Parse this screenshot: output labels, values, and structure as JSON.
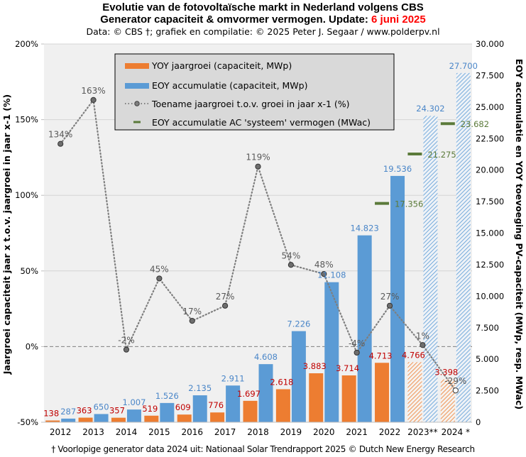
{
  "header": {
    "title_line1": "Evolutie van de fotovoltaïsche markt in Nederland volgens CBS",
    "title_line2_prefix": "Generator capaciteit & omvormer vermogen. Update: ",
    "title_line2_date": "6 juni 2025",
    "subtitle": "Data: © CBS †; grafiek en compilatie: © 2025 Peter J. Segaar / www.polderpv.nl"
  },
  "footer": "† Voorlopige generator data 2024 uit: Nationaal Solar Trendrapport 2025 © Dutch New Energy Research",
  "colors": {
    "yoy": "#ed7d31",
    "eoy": "#5b9bd5",
    "growth_line": "#7f7f7f",
    "ac": "#5b7a3a",
    "plot_bg": "#f0f0f0",
    "legend_bg": "#d9d9d9",
    "date_red": "#ff0000"
  },
  "chart_data": {
    "type": "bar",
    "title": "Evolutie van de fotovoltaïsche markt in Nederland volgens CBS",
    "categories": [
      "2012",
      "2013",
      "2014",
      "2015",
      "2016",
      "2017",
      "2018",
      "2019",
      "2020",
      "2021",
      "2022",
      "2023**",
      "2024 *"
    ],
    "left_axis": {
      "label": "Jaargroei capaciteit jaar x t.o.v. jaargroei in jaar x-1 (%)",
      "ylim": [
        -50,
        200
      ],
      "ticks": [
        -50,
        0,
        50,
        100,
        150,
        200
      ],
      "tick_labels": [
        "-50%",
        "0%",
        "50%",
        "100%",
        "150%",
        "200%"
      ]
    },
    "right_axis": {
      "label": "EOY accumulatie en YOY toevoeging PV-capaciteit (MWp, resp. MWac)",
      "ylim": [
        0,
        30000
      ],
      "ticks": [
        0,
        2500,
        5000,
        7500,
        10000,
        12500,
        15000,
        17500,
        20000,
        22500,
        25000,
        27500,
        30000
      ],
      "tick_labels": [
        "0",
        "2.500",
        "5.000",
        "7.500",
        "10.000",
        "12.500",
        "15.000",
        "17.500",
        "20.000",
        "22.500",
        "25.000",
        "27.500",
        "30.000"
      ]
    },
    "grid": true,
    "legend_placement": "top-center",
    "series": [
      {
        "name": "YOY jaargroei (capaciteit, MWp)",
        "kind": "bar",
        "axis": "right",
        "values": [
          138,
          363,
          357,
          519,
          609,
          776,
          1697,
          2618,
          3883,
          3714,
          4713,
          4766,
          3398
        ],
        "labels": [
          "138",
          "363",
          "357",
          "519",
          "609",
          "776",
          "1.697",
          "2.618",
          "3.883",
          "3.714",
          "4.713",
          "4.766",
          "3.398"
        ],
        "hatched": [
          false,
          false,
          false,
          false,
          false,
          false,
          false,
          false,
          false,
          false,
          false,
          true,
          true
        ]
      },
      {
        "name": "EOY accumulatie (capaciteit, MWp)",
        "kind": "bar",
        "axis": "right",
        "values": [
          287,
          650,
          1007,
          1526,
          2135,
          2911,
          4608,
          7226,
          11108,
          14823,
          19536,
          24302,
          27700
        ],
        "labels": [
          "287",
          "650",
          "1.007",
          "1.526",
          "2.135",
          "2.911",
          "4.608",
          "7.226",
          "11.108",
          "14.823",
          "19.536",
          "24.302",
          "27.700"
        ],
        "hatched": [
          false,
          false,
          false,
          false,
          false,
          false,
          false,
          false,
          false,
          false,
          false,
          true,
          true
        ]
      },
      {
        "name": "Toename jaargroei t.o.v. groei in jaar x-1 (%)",
        "kind": "line",
        "axis": "left",
        "values": [
          134,
          163,
          -2,
          45,
          17,
          27,
          119,
          54,
          48,
          -4,
          27,
          1,
          -29
        ],
        "labels": [
          "134%",
          "163%",
          "-2%",
          "45%",
          "17%",
          "27%",
          "119%",
          "54%",
          "48%",
          "-4%",
          "27%",
          "1%",
          "-29%"
        ],
        "open_marker": [
          false,
          false,
          false,
          false,
          false,
          false,
          false,
          false,
          false,
          false,
          false,
          false,
          true
        ]
      },
      {
        "name": "EOY accumulatie AC 'systeem' vermogen (MWac)",
        "kind": "marker",
        "axis": "right",
        "values": [
          null,
          null,
          null,
          null,
          null,
          null,
          null,
          null,
          null,
          null,
          17356,
          21275,
          23682
        ],
        "labels": [
          null,
          null,
          null,
          null,
          null,
          null,
          null,
          null,
          null,
          null,
          "17.356",
          "21.275",
          "23.682"
        ]
      }
    ]
  }
}
